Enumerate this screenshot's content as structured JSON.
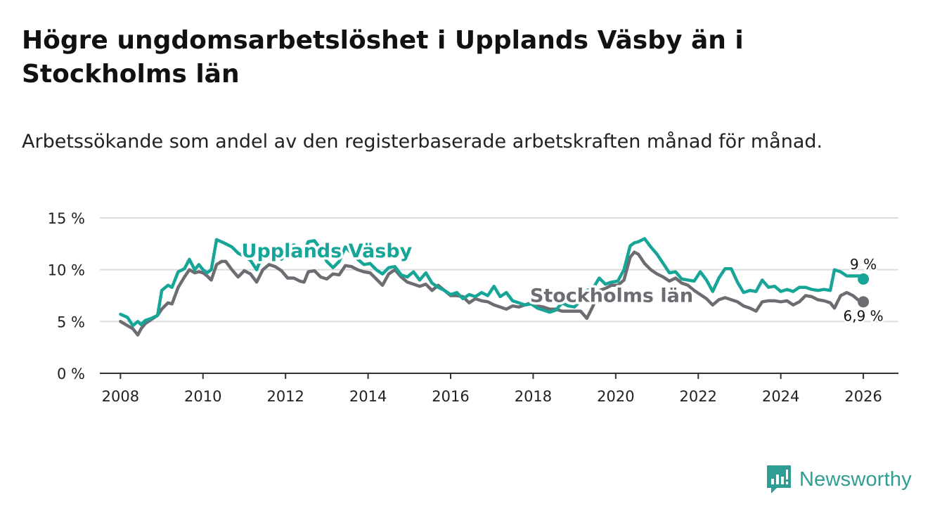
{
  "header": {
    "title": "Högre ungdomsarbetslöshet i Upplands Väsby än i Stockholms län",
    "subtitle": "Arbetssökande som andel av den registerbaserade arbetskraften månad för månad."
  },
  "brand": {
    "name": "Newsworthy"
  },
  "colors": {
    "vasby": "#17a597",
    "lan": "#6e6c73",
    "grid": "#dcdcdc",
    "axis": "#333333"
  },
  "chart_data": {
    "type": "line",
    "title": "Högre ungdomsarbetslöshet i Upplands Väsby än i Stockholms län",
    "subtitle": "Arbetssökande som andel av den registerbaserade arbetskraften månad för månad.",
    "xlabel": "",
    "ylabel": "",
    "ylim": [
      0,
      15
    ],
    "xlim": [
      2007.5,
      2026.85
    ],
    "y_ticks": [
      0,
      5,
      10,
      15
    ],
    "y_tick_labels": [
      "0 %",
      "5 %",
      "10 %",
      "15 %"
    ],
    "x_ticks": [
      2008,
      2010,
      2012,
      2014,
      2016,
      2018,
      2020,
      2022,
      2024,
      2026
    ],
    "x_tick_labels": [
      "2008",
      "2010",
      "2012",
      "2014",
      "2016",
      "2018",
      "2020",
      "2022",
      "2024",
      "2026"
    ],
    "grid": true,
    "series": [
      {
        "name": "Upplands Väsby",
        "color": "#17a597",
        "end_label": "9 %",
        "x": [
          2008.0,
          2008.17,
          2008.3,
          2008.42,
          2008.5,
          2008.6,
          2008.75,
          2008.9,
          2009.0,
          2009.15,
          2009.25,
          2009.4,
          2009.55,
          2009.67,
          2009.8,
          2009.9,
          2010.0,
          2010.1,
          2010.2,
          2010.33,
          2010.45,
          2010.55,
          2010.7,
          2010.85,
          2011.0,
          2011.15,
          2011.3,
          2011.45,
          2011.6,
          2011.75,
          2011.9,
          2012.05,
          2012.2,
          2012.35,
          2012.45,
          2012.55,
          2012.7,
          2012.85,
          2013.0,
          2013.15,
          2013.3,
          2013.45,
          2013.6,
          2013.75,
          2013.9,
          2014.05,
          2014.2,
          2014.35,
          2014.5,
          2014.65,
          2014.8,
          2014.95,
          2015.1,
          2015.25,
          2015.4,
          2015.55,
          2015.7,
          2015.85,
          2016.0,
          2016.15,
          2016.3,
          2016.45,
          2016.6,
          2016.75,
          2016.9,
          2017.05,
          2017.2,
          2017.35,
          2017.5,
          2017.65,
          2017.8,
          2017.95,
          2018.1,
          2018.25,
          2018.4,
          2018.55,
          2018.7,
          2018.85,
          2019.0,
          2019.15,
          2019.3,
          2019.45,
          2019.6,
          2019.75,
          2019.9,
          2020.05,
          2020.2,
          2020.35,
          2020.45,
          2020.55,
          2020.7,
          2020.85,
          2021.0,
          2021.15,
          2021.3,
          2021.45,
          2021.6,
          2021.75,
          2021.9,
          2022.05,
          2022.2,
          2022.35,
          2022.5,
          2022.65,
          2022.8,
          2022.95,
          2023.1,
          2023.25,
          2023.4,
          2023.55,
          2023.7,
          2023.85,
          2024.0,
          2024.15,
          2024.3,
          2024.45,
          2024.6,
          2024.75,
          2024.9,
          2025.05,
          2025.2,
          2025.3,
          2025.45,
          2025.6,
          2025.75,
          2025.9,
          2026.0
        ],
        "values": [
          5.7,
          5.4,
          4.6,
          5.0,
          4.7,
          5.1,
          5.3,
          5.6,
          8.0,
          8.5,
          8.3,
          9.8,
          10.1,
          11.0,
          10.0,
          10.5,
          10.0,
          9.7,
          10.0,
          12.9,
          12.7,
          12.5,
          12.2,
          11.6,
          11.3,
          10.9,
          10.0,
          11.5,
          11.2,
          11.7,
          11.0,
          11.8,
          12.4,
          12.0,
          11.7,
          12.7,
          12.8,
          12.0,
          10.8,
          10.2,
          10.8,
          12.2,
          11.6,
          11.0,
          10.5,
          10.6,
          10.0,
          9.6,
          10.2,
          10.3,
          9.5,
          9.3,
          9.8,
          9.0,
          9.7,
          8.7,
          8.3,
          8.0,
          7.6,
          7.8,
          7.2,
          7.6,
          7.4,
          7.8,
          7.5,
          8.4,
          7.4,
          7.8,
          7.0,
          6.8,
          6.6,
          6.7,
          6.3,
          6.1,
          5.9,
          6.1,
          6.8,
          6.5,
          6.4,
          7.0,
          8.0,
          8.2,
          9.2,
          8.6,
          8.8,
          8.9,
          10.0,
          12.3,
          12.6,
          12.7,
          13.0,
          12.2,
          11.5,
          10.6,
          9.7,
          9.8,
          9.1,
          9.0,
          8.9,
          9.8,
          9.0,
          7.9,
          9.2,
          10.1,
          10.1,
          8.8,
          7.8,
          8.0,
          7.9,
          9.0,
          8.3,
          8.4,
          7.9,
          8.1,
          7.9,
          8.3,
          8.3,
          8.1,
          8.0,
          8.1,
          8.0,
          10.0,
          9.8,
          9.4,
          9.4,
          9.4,
          9.1
        ]
      },
      {
        "name": "Stockholms län",
        "color": "#6e6c73",
        "end_label": "6,9 %",
        "x": [
          2008.0,
          2008.17,
          2008.3,
          2008.42,
          2008.5,
          2008.6,
          2008.75,
          2008.9,
          2009.0,
          2009.15,
          2009.25,
          2009.4,
          2009.55,
          2009.67,
          2009.8,
          2009.9,
          2010.0,
          2010.1,
          2010.2,
          2010.33,
          2010.45,
          2010.55,
          2010.7,
          2010.85,
          2011.0,
          2011.15,
          2011.3,
          2011.45,
          2011.6,
          2011.75,
          2011.9,
          2012.05,
          2012.2,
          2012.35,
          2012.45,
          2012.55,
          2012.7,
          2012.85,
          2013.0,
          2013.15,
          2013.3,
          2013.45,
          2013.6,
          2013.75,
          2013.9,
          2014.05,
          2014.2,
          2014.35,
          2014.5,
          2014.65,
          2014.8,
          2014.95,
          2015.1,
          2015.25,
          2015.4,
          2015.55,
          2015.7,
          2015.85,
          2016.0,
          2016.15,
          2016.3,
          2016.45,
          2016.6,
          2016.75,
          2016.9,
          2017.05,
          2017.2,
          2017.35,
          2017.5,
          2017.65,
          2017.8,
          2017.95,
          2018.1,
          2018.25,
          2018.4,
          2018.55,
          2018.7,
          2018.85,
          2019.0,
          2019.15,
          2019.3,
          2019.45,
          2019.6,
          2019.75,
          2019.9,
          2020.05,
          2020.2,
          2020.35,
          2020.45,
          2020.55,
          2020.7,
          2020.85,
          2021.0,
          2021.15,
          2021.3,
          2021.45,
          2021.6,
          2021.75,
          2021.9,
          2022.05,
          2022.2,
          2022.35,
          2022.5,
          2022.65,
          2022.8,
          2022.95,
          2023.1,
          2023.25,
          2023.4,
          2023.55,
          2023.7,
          2023.85,
          2024.0,
          2024.15,
          2024.3,
          2024.45,
          2024.6,
          2024.75,
          2024.9,
          2025.05,
          2025.2,
          2025.3,
          2025.45,
          2025.6,
          2025.75,
          2025.9,
          2026.0
        ],
        "values": [
          5.0,
          4.6,
          4.3,
          3.7,
          4.3,
          4.8,
          5.2,
          5.6,
          6.2,
          6.8,
          6.7,
          8.3,
          9.3,
          10.0,
          9.7,
          9.8,
          9.7,
          9.4,
          9.0,
          10.5,
          10.8,
          10.8,
          10.0,
          9.3,
          9.9,
          9.6,
          8.8,
          10.0,
          10.5,
          10.3,
          9.9,
          9.2,
          9.2,
          8.9,
          8.8,
          9.8,
          9.9,
          9.3,
          9.1,
          9.6,
          9.5,
          10.4,
          10.3,
          10.0,
          9.8,
          9.7,
          9.1,
          8.5,
          9.6,
          10.0,
          9.3,
          8.8,
          8.6,
          8.4,
          8.6,
          8.0,
          8.5,
          8.0,
          7.5,
          7.5,
          7.4,
          6.8,
          7.2,
          7.0,
          6.9,
          6.6,
          6.4,
          6.2,
          6.5,
          6.4,
          6.6,
          6.8,
          6.5,
          6.4,
          6.2,
          6.2,
          6.0,
          6.0,
          6.0,
          6.0,
          5.3,
          6.5,
          8.0,
          8.2,
          8.5,
          8.5,
          9.0,
          11.2,
          11.7,
          11.5,
          10.6,
          10.0,
          9.6,
          9.3,
          8.9,
          9.2,
          8.7,
          8.5,
          8.0,
          7.6,
          7.2,
          6.6,
          7.1,
          7.3,
          7.1,
          6.9,
          6.5,
          6.3,
          6.0,
          6.9,
          7.0,
          7.0,
          6.9,
          7.0,
          6.6,
          6.9,
          7.5,
          7.4,
          7.1,
          7.0,
          6.8,
          6.3,
          7.5,
          7.8,
          7.5,
          7.0,
          6.9
        ]
      }
    ],
    "annotations": [
      {
        "text": "Upplands Väsby",
        "series": "Upplands Väsby",
        "x": 2013.0,
        "y": 11.2
      },
      {
        "text": "Stockholms län",
        "series": "Stockholms län",
        "x": 2019.9,
        "y": 6.9
      }
    ]
  }
}
